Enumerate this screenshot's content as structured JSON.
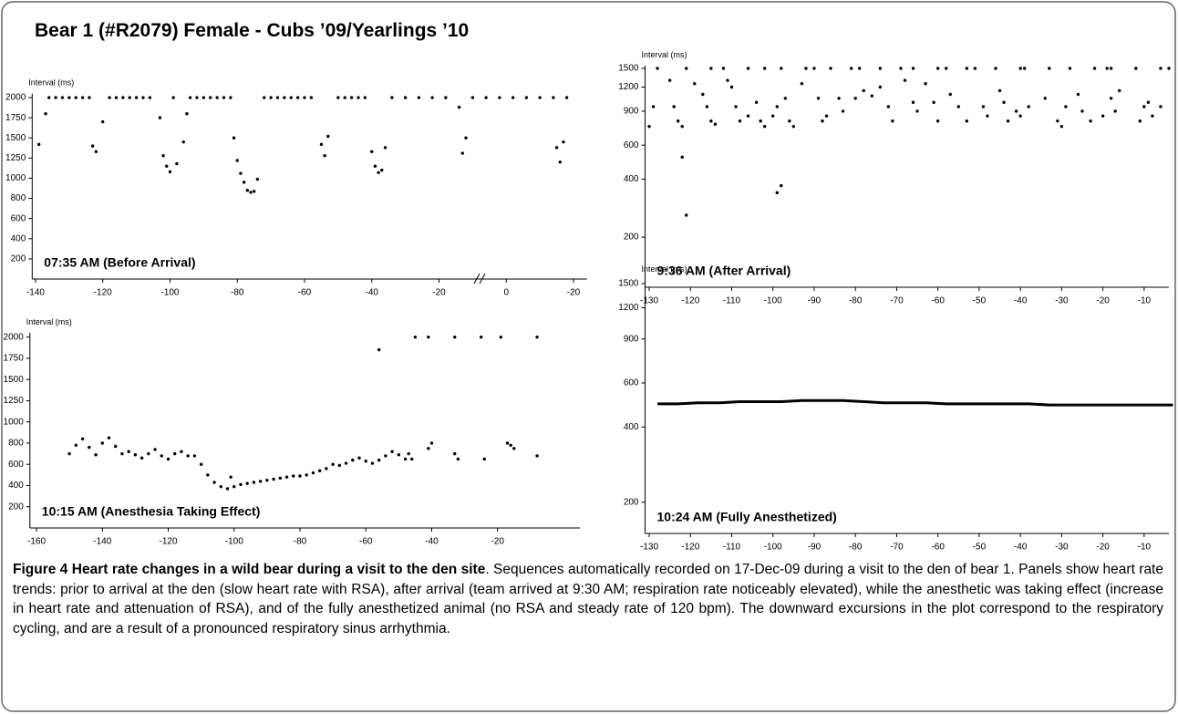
{
  "title": "Bear 1 (#R2079) Female - Cubs ’09/Yearlings ’10",
  "chart_data": [
    {
      "type": "scatter",
      "ylabel": "Interval (ms)",
      "annotation": "07:35 AM (Before Arrival)",
      "color": "#000000",
      "xscale": "tick-spaced",
      "yscale": "tick-spaced",
      "xlim": [
        -141,
        24
      ],
      "xticks": [
        -140,
        -120,
        -100,
        -80,
        -60,
        -40,
        -20,
        0,
        {
          "value": 20,
          "label": "-20"
        }
      ],
      "ylim": [
        0,
        2050
      ],
      "yticks": [
        200,
        400,
        600,
        800,
        1000,
        1250,
        1500,
        1750,
        2000
      ],
      "x": [
        -139,
        -137,
        -123,
        -122,
        -120,
        -103,
        -102,
        -101,
        -100,
        -98,
        -96,
        -95,
        -81,
        -80,
        -79,
        -78,
        -77,
        -76,
        -75,
        -74,
        -55,
        -54,
        -53,
        -40,
        -39,
        -38,
        -37,
        -36,
        -14,
        -13,
        -12,
        15,
        16,
        17,
        -136,
        -134,
        -132,
        -130,
        -128,
        -126,
        -124,
        -118,
        -116,
        -114,
        -112,
        -110,
        -108,
        -106,
        -99,
        -94,
        -92,
        -90,
        -88,
        -86,
        -84,
        -82,
        -72,
        -70,
        -68,
        -66,
        -64,
        -62,
        -60,
        -58,
        -50,
        -48,
        -46,
        -44,
        -42,
        -34,
        -30,
        -26,
        -22,
        -18,
        -10,
        -6,
        -2,
        2,
        6,
        10,
        14,
        18
      ],
      "values": [
        1420,
        1800,
        1400,
        1330,
        1700,
        1750,
        1280,
        1150,
        1080,
        1180,
        1450,
        1800,
        1500,
        1220,
        1060,
        960,
        880,
        860,
        870,
        990,
        1420,
        1280,
        1520,
        1330,
        1150,
        1070,
        1100,
        1380,
        1880,
        1310,
        1500,
        1380,
        1200,
        1450,
        2000,
        2000,
        2000,
        2000,
        2000,
        2000,
        2000,
        2000,
        2000,
        2000,
        2000,
        2000,
        2000,
        2000,
        2000,
        2000,
        2000,
        2000,
        2000,
        2000,
        2000,
        2000,
        2000,
        2000,
        2000,
        2000,
        2000,
        2000,
        2000,
        2000,
        2000,
        2000,
        2000,
        2000,
        2000,
        2000,
        2000,
        2000,
        2000,
        2000,
        2000,
        2000,
        2000,
        2000,
        2000,
        2000,
        2000,
        2000
      ]
    },
    {
      "type": "scatter",
      "ylabel": "Interval (ms)",
      "annotation": "9:36 AM (After Arrival)",
      "color": "#000000",
      "xscale": "linear",
      "yscale": "log",
      "xlim": [
        -131,
        -4
      ],
      "xticks": [
        -130,
        -120,
        -110,
        -100,
        -90,
        -80,
        -70,
        -60,
        -50,
        -40,
        -30,
        -20,
        -10
      ],
      "ylim": [
        110,
        1550
      ],
      "yticks": [
        200,
        400,
        600,
        900,
        1200,
        1500
      ],
      "x": [
        -128,
        -121,
        -115,
        -112,
        -106,
        -102,
        -98,
        -92,
        -90,
        -86,
        -81,
        -79,
        -74,
        -69,
        -66,
        -60,
        -58,
        -53,
        -51,
        -46,
        -40,
        -39,
        -33,
        -28,
        -22,
        -19,
        -18,
        -12,
        -6,
        -4,
        -130,
        -129,
        -125,
        -124,
        -123,
        -122,
        -122,
        -121,
        -119,
        -117,
        -116,
        -115,
        -114,
        -111,
        -110,
        -109,
        -108,
        -106,
        -104,
        -103,
        -102,
        -100,
        -99,
        -99,
        -98,
        -97,
        -96,
        -95,
        -93,
        -89,
        -88,
        -87,
        -84,
        -83,
        -80,
        -78,
        -76,
        -74,
        -72,
        -71,
        -68,
        -66,
        -65,
        -63,
        -61,
        -60,
        -57,
        -55,
        -53,
        -49,
        -48,
        -45,
        -44,
        -43,
        -41,
        -40,
        -38,
        -34,
        -31,
        -30,
        -29,
        -26,
        -25,
        -23,
        -20,
        -18,
        -17,
        -16,
        -11,
        -10,
        -9,
        -8,
        -6
      ],
      "values": [
        1500,
        1500,
        1500,
        1500,
        1500,
        1500,
        1500,
        1500,
        1500,
        1500,
        1500,
        1500,
        1500,
        1500,
        1500,
        1500,
        1500,
        1500,
        1500,
        1500,
        1500,
        1500,
        1500,
        1500,
        1500,
        1500,
        1500,
        1500,
        1500,
        1500,
        750,
        950,
        1300,
        950,
        800,
        750,
        520,
        260,
        1250,
        1100,
        950,
        800,
        770,
        1300,
        1200,
        950,
        800,
        850,
        1000,
        800,
        750,
        850,
        950,
        340,
        370,
        1050,
        800,
        750,
        1250,
        1050,
        800,
        850,
        1050,
        900,
        1050,
        1150,
        1080,
        1200,
        950,
        800,
        1300,
        1000,
        900,
        1250,
        1000,
        800,
        1100,
        950,
        800,
        950,
        850,
        1150,
        1000,
        800,
        900,
        850,
        950,
        1050,
        800,
        750,
        950,
        1100,
        900,
        800,
        850,
        1050,
        900,
        1150,
        800,
        950,
        1000,
        850,
        950
      ]
    },
    {
      "type": "scatter",
      "ylabel": "Interval (ms)",
      "annotation": "10:15 AM (Anesthesia Taking Effect)",
      "color": "#000000",
      "xscale": "linear",
      "yscale": "tick-spaced",
      "xlim": [
        -162,
        5
      ],
      "xticks": [
        -160,
        -140,
        -120,
        -100,
        -80,
        -60,
        -40,
        -20
      ],
      "ylim": [
        0,
        2050
      ],
      "yticks": [
        200,
        400,
        600,
        800,
        1000,
        1250,
        1500,
        1750,
        2000
      ],
      "x": [
        -150,
        -148,
        -146,
        -144,
        -142,
        -140,
        -138,
        -136,
        -134,
        -132,
        -130,
        -128,
        -126,
        -124,
        -122,
        -120,
        -118,
        -116,
        -114,
        -112,
        -110,
        -108,
        -106,
        -104,
        -102,
        -100,
        -98,
        -96,
        -94,
        -92,
        -90,
        -88,
        -86,
        -84,
        -82,
        -80,
        -78,
        -76,
        -74,
        -72,
        -70,
        -68,
        -66,
        -64,
        -62,
        -60,
        -58,
        -56,
        -54,
        -52,
        -50,
        -48,
        -101,
        -56,
        -47,
        -46,
        -45,
        -41,
        -41,
        -40,
        -33,
        -33,
        -32,
        -25,
        -24,
        -19,
        -17,
        -16,
        -15,
        -8,
        -8
      ],
      "values": [
        700,
        780,
        840,
        760,
        690,
        800,
        850,
        770,
        700,
        720,
        690,
        660,
        700,
        740,
        680,
        650,
        700,
        720,
        680,
        680,
        600,
        500,
        430,
        390,
        370,
        390,
        410,
        420,
        430,
        440,
        450,
        460,
        470,
        480,
        490,
        490,
        500,
        520,
        540,
        560,
        600,
        590,
        610,
        640,
        660,
        630,
        610,
        640,
        680,
        720,
        690,
        650,
        480,
        1850,
        700,
        650,
        2000,
        2000,
        750,
        800,
        2000,
        700,
        650,
        2000,
        650,
        2000,
        800,
        780,
        750,
        2000,
        680
      ]
    },
    {
      "type": "line",
      "ylabel": "Interval (ms)",
      "annotation": "10:24 AM (Fully Anesthetized)",
      "color": "#000000",
      "xscale": "linear",
      "yscale": "log",
      "xlim": [
        -131,
        -4
      ],
      "xticks": [
        -130,
        -120,
        -110,
        -100,
        -90,
        -80,
        -70,
        -60,
        -50,
        -40,
        -30,
        -20,
        -10
      ],
      "ylim": [
        150,
        1550
      ],
      "yticks": [
        200,
        400,
        600,
        900,
        1200,
        1500
      ],
      "x": [
        -128,
        -123,
        -118,
        -113,
        -108,
        -103,
        -98,
        -93,
        -88,
        -83,
        -78,
        -73,
        -68,
        -63,
        -58,
        -53,
        -48,
        -43,
        -38,
        -33,
        -28,
        -23,
        -18,
        -13,
        -8,
        -3
      ],
      "values": [
        495,
        495,
        500,
        500,
        505,
        505,
        505,
        510,
        510,
        510,
        505,
        500,
        500,
        500,
        495,
        495,
        495,
        495,
        495,
        490,
        490,
        490,
        490,
        490,
        490,
        490
      ]
    }
  ],
  "caption": {
    "title": "Figure 4 Heart rate changes in a wild bear during a visit to the den site",
    "text": ". Sequences automatically recorded on 17-Dec-09 during a visit to the den of bear 1. Panels show heart rate trends: prior to arrival at the den (slow heart rate with RSA), after arrival (team arrived at 9:30 AM; respiration rate noticeably elevated), while the anesthetic was taking effect (increase in heart rate and attenuation of RSA), and of the fully anesthetized animal (no RSA and steady rate of 120 bpm). The downward excursions in the plot correspond to the respiratory cycling, and are a result of a pronounced respiratory sinus arrhythmia."
  }
}
